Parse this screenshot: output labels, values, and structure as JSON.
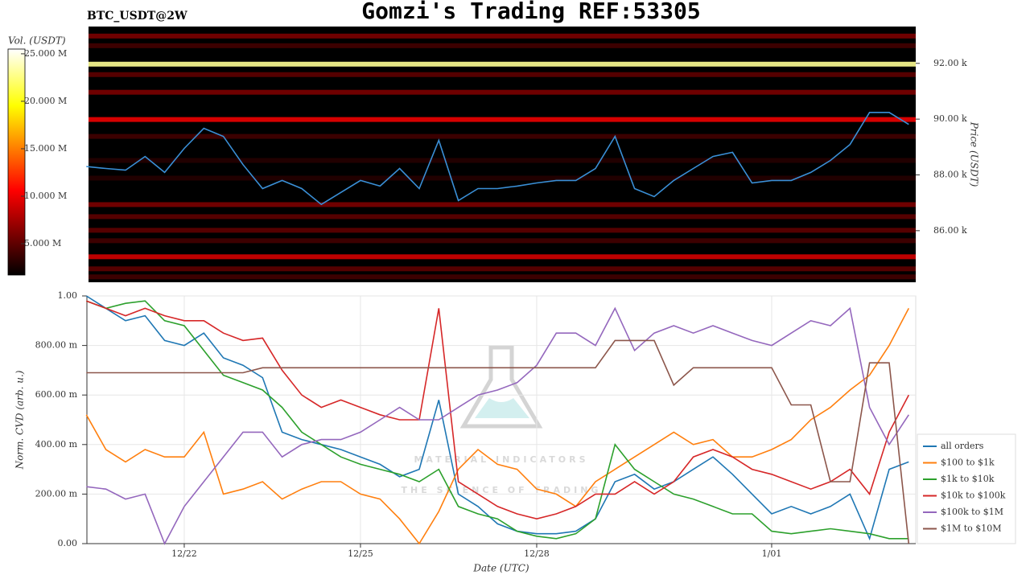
{
  "title": "Gomzi's Trading REF:53305",
  "watermark": {
    "name": "MATERIAL INDICATORS",
    "tagline": "THE SCIENCE OF TRADING"
  },
  "chart_data": [
    {
      "type": "heatmap",
      "title": "BTC_USDT@2W",
      "colorbar_label": "Vol. (USDT)",
      "ylabel": "Price (USDT)",
      "categories": [
        null,
        null,
        null,
        null,
        null,
        null,
        null,
        null,
        null,
        null,
        null,
        null,
        null,
        null,
        null,
        null,
        null,
        null,
        null,
        null,
        null,
        null,
        null,
        null,
        null,
        null,
        null,
        null,
        null,
        null,
        null,
        null,
        null,
        null,
        null,
        null,
        null,
        null,
        null,
        null,
        null,
        null,
        null
      ],
      "ylim": [
        84150,
        93320
      ],
      "yticks": [
        {
          "value": 86000,
          "label": "86.00 k"
        },
        {
          "value": 88000,
          "label": "88.00 k"
        },
        {
          "value": 90000,
          "label": "90.00 k"
        },
        {
          "value": 92000,
          "label": "92.00 k"
        }
      ],
      "clim": [
        1700000,
        25500000
      ],
      "cticks": [
        {
          "value": 5000000,
          "label": "5.000 M"
        },
        {
          "value": 10000000,
          "label": "10.000 M"
        },
        {
          "value": 15000000,
          "label": "15.000 M"
        },
        {
          "value": 20000000,
          "label": "20.000 M"
        },
        {
          "value": 25000000,
          "label": "25.000 M"
        }
      ],
      "levels": {
        "prices": [
          92979,
          92633,
          91971,
          91597,
          90964,
          89986,
          89381,
          88518,
          87885,
          86935,
          86503,
          86014,
          85640,
          85064,
          84632,
          84344
        ],
        "volumes": [
          6000000,
          4000000,
          23000000,
          5000000,
          6000000,
          10000000,
          4000000,
          3000000,
          3000000,
          6000000,
          5000000,
          5000000,
          4000000,
          9000000,
          5000000,
          4000000
        ]
      },
      "price": {
        "color": "#3a8fd6",
        "values": [
          88300,
          88230,
          88170,
          88660,
          88090,
          88950,
          89670,
          89380,
          88370,
          87510,
          87800,
          87510,
          86940,
          87370,
          87800,
          87600,
          88230,
          87510,
          89240,
          87080,
          87510,
          87510,
          87600,
          87710,
          87800,
          87800,
          88230,
          89380,
          87510,
          87220,
          87800,
          88230,
          88660,
          88810,
          87710,
          87800,
          87800,
          88090,
          88520,
          89090,
          90240,
          90240,
          89810
        ]
      }
    },
    {
      "type": "line",
      "xlabel": "Date (UTC)",
      "ylabel": "Norm. CVD (arb. u.)",
      "categories": [
        null,
        null,
        null,
        null,
        null,
        "12/22",
        null,
        null,
        null,
        null,
        null,
        null,
        null,
        null,
        "12/25",
        null,
        null,
        null,
        null,
        null,
        null,
        null,
        null,
        "12/28",
        null,
        null,
        null,
        null,
        null,
        null,
        null,
        null,
        null,
        null,
        null,
        "1/01",
        null,
        null,
        null,
        null,
        null,
        null,
        null
      ],
      "ylim": [
        0,
        1
      ],
      "yticks": [
        {
          "value": 0,
          "label": "0.00"
        },
        {
          "value": 0.2,
          "label": "200.00 m"
        },
        {
          "value": 0.4,
          "label": "400.00 m"
        },
        {
          "value": 0.6,
          "label": "600.00 m"
        },
        {
          "value": 0.8,
          "label": "800.00 m"
        },
        {
          "value": 1,
          "label": "1.00"
        }
      ],
      "grid": true,
      "legend": "right",
      "series": [
        {
          "name": "all orders",
          "color": "#1f77b4",
          "values": [
            1.0,
            0.95,
            0.9,
            0.92,
            0.82,
            0.8,
            0.85,
            0.75,
            0.72,
            0.67,
            0.45,
            0.42,
            0.4,
            0.38,
            0.35,
            0.32,
            0.27,
            0.3,
            0.58,
            0.2,
            0.15,
            0.08,
            0.05,
            0.04,
            0.04,
            0.05,
            0.1,
            0.25,
            0.28,
            0.22,
            0.25,
            0.3,
            0.35,
            0.28,
            0.2,
            0.12,
            0.15,
            0.12,
            0.15,
            0.2,
            0.02,
            0.3,
            0.33
          ]
        },
        {
          "name": "$100 to $1k",
          "color": "#ff7f0e",
          "values": [
            0.52,
            0.38,
            0.33,
            0.38,
            0.35,
            0.35,
            0.45,
            0.2,
            0.22,
            0.25,
            0.18,
            0.22,
            0.25,
            0.25,
            0.2,
            0.18,
            0.1,
            0.0,
            0.13,
            0.3,
            0.38,
            0.32,
            0.3,
            0.22,
            0.2,
            0.15,
            0.25,
            0.3,
            0.35,
            0.4,
            0.45,
            0.4,
            0.42,
            0.35,
            0.35,
            0.38,
            0.42,
            0.5,
            0.55,
            0.62,
            0.68,
            0.8,
            0.95
          ]
        },
        {
          "name": "$1k to $10k",
          "color": "#2ca02c",
          "values": [
            0.98,
            0.95,
            0.97,
            0.98,
            0.9,
            0.88,
            0.78,
            0.68,
            0.65,
            0.62,
            0.55,
            0.45,
            0.4,
            0.35,
            0.32,
            0.3,
            0.28,
            0.25,
            0.3,
            0.15,
            0.12,
            0.1,
            0.05,
            0.03,
            0.02,
            0.04,
            0.1,
            0.4,
            0.3,
            0.25,
            0.2,
            0.18,
            0.15,
            0.12,
            0.12,
            0.05,
            0.04,
            0.05,
            0.06,
            0.05,
            0.04,
            0.02,
            0.02
          ]
        },
        {
          "name": "$10k to $100k",
          "color": "#d62728",
          "values": [
            0.98,
            0.95,
            0.92,
            0.95,
            0.92,
            0.9,
            0.9,
            0.85,
            0.82,
            0.83,
            0.7,
            0.6,
            0.55,
            0.58,
            0.55,
            0.52,
            0.5,
            0.5,
            0.95,
            0.25,
            0.2,
            0.15,
            0.12,
            0.1,
            0.12,
            0.15,
            0.2,
            0.2,
            0.25,
            0.2,
            0.25,
            0.35,
            0.38,
            0.35,
            0.3,
            0.28,
            0.25,
            0.22,
            0.25,
            0.3,
            0.2,
            0.45,
            0.6
          ]
        },
        {
          "name": "$100k to $1M",
          "color": "#9467bd",
          "values": [
            0.23,
            0.22,
            0.18,
            0.2,
            0.0,
            0.15,
            0.25,
            0.35,
            0.45,
            0.45,
            0.35,
            0.4,
            0.42,
            0.42,
            0.45,
            0.5,
            0.55,
            0.5,
            0.5,
            0.55,
            0.6,
            0.62,
            0.65,
            0.72,
            0.85,
            0.85,
            0.8,
            0.95,
            0.78,
            0.85,
            0.88,
            0.85,
            0.88,
            0.85,
            0.82,
            0.8,
            0.85,
            0.9,
            0.88,
            0.95,
            0.55,
            0.4,
            0.52
          ]
        },
        {
          "name": "$1M to $10M",
          "color": "#8c564b",
          "values": [
            0.69,
            0.69,
            0.69,
            0.69,
            0.69,
            0.69,
            0.69,
            0.69,
            0.69,
            0.71,
            0.71,
            0.71,
            0.71,
            0.71,
            0.71,
            0.71,
            0.71,
            0.71,
            0.71,
            0.71,
            0.71,
            0.71,
            0.71,
            0.71,
            0.71,
            0.71,
            0.71,
            0.82,
            0.82,
            0.82,
            0.64,
            0.71,
            0.71,
            0.71,
            0.71,
            0.71,
            0.56,
            0.56,
            0.25,
            0.25,
            0.73,
            0.73,
            0.0
          ]
        }
      ]
    }
  ]
}
